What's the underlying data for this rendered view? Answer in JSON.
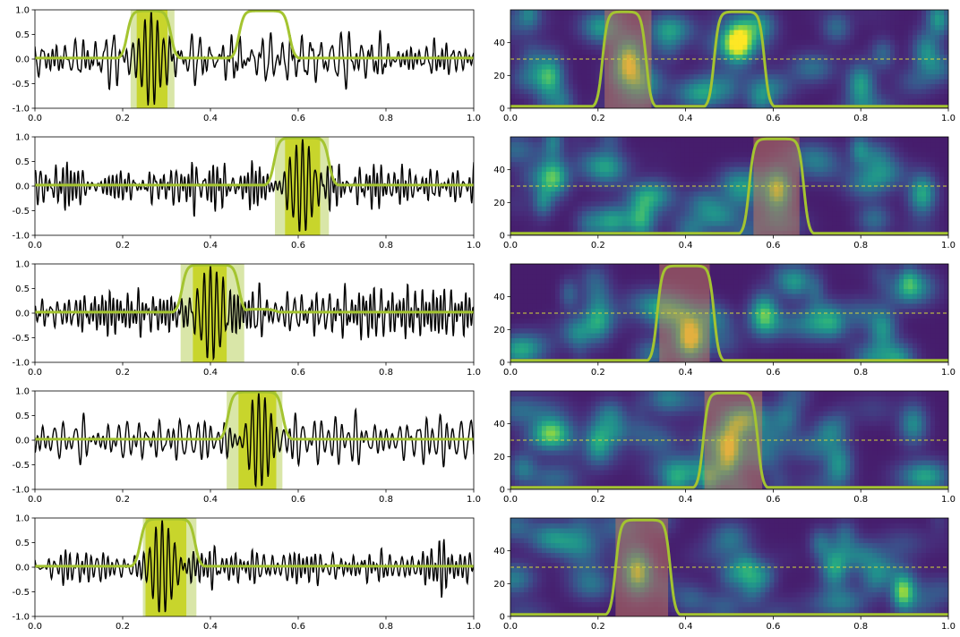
{
  "figure": {
    "colors": {
      "signal": "#000000",
      "probability": "#a4c430",
      "region_light": "#d9e6a8",
      "region_dark": "#c8d52c",
      "threshold": "#d6d83a",
      "overlay": "#c97a5a"
    }
  },
  "chart_data": [
    {
      "type": "line",
      "panel": "signal",
      "row": 0,
      "seed": 11,
      "xlim": [
        0,
        1
      ],
      "ylim": [
        -1,
        1
      ],
      "xticks": [
        "0.0",
        "0.2",
        "0.4",
        "0.6",
        "0.8",
        "1.0"
      ],
      "yticks": [
        "1.0",
        "0.5",
        "0.0",
        "-0.5",
        "-1.0"
      ],
      "series": [
        {
          "values": "signal_trace"
        },
        {
          "values": "probability_trace"
        }
      ],
      "event": {
        "center": 0.265,
        "peak": 0.97
      },
      "outer_region": [
        0.218,
        0.318
      ],
      "inner_region": [
        0.232,
        0.302
      ],
      "prob_segments": [
        [
          0.21,
          0.31
        ],
        [
          0.465,
          0.58
        ]
      ]
    },
    {
      "type": "heatmap",
      "panel": "spectrogram",
      "row": 0,
      "seed": 111,
      "xlim": [
        0,
        1
      ],
      "ylim": [
        0,
        60
      ],
      "xticks": [
        "0.0",
        "0.2",
        "0.4",
        "0.6",
        "0.8",
        "1.0"
      ],
      "yticks": [
        "0",
        "20",
        "40"
      ],
      "threshold": 30,
      "overlay": [
        0.215,
        0.322
      ],
      "prob_segments": [
        [
          0.21,
          0.31
        ],
        [
          0.465,
          0.58
        ]
      ],
      "blobs": [
        [
          0.27,
          30,
          1
        ],
        [
          0.52,
          40,
          0.8
        ],
        [
          0.09,
          20,
          0.7
        ],
        [
          0.8,
          15,
          0.6
        ],
        [
          0.95,
          35,
          0.5
        ]
      ]
    },
    {
      "type": "line",
      "panel": "signal",
      "row": 1,
      "seed": 22,
      "xlim": [
        0,
        1
      ],
      "ylim": [
        -1,
        1
      ],
      "xticks": [
        "0.0",
        "0.2",
        "0.4",
        "0.6",
        "0.8",
        "1.0"
      ],
      "yticks": [
        "1.0",
        "0.5",
        "0.0",
        "-0.5",
        "-1.0"
      ],
      "series": [
        {
          "values": "signal_trace"
        },
        {
          "values": "probability_trace"
        }
      ],
      "event": {
        "center": 0.61,
        "peak": 0.97
      },
      "outer_region": [
        0.547,
        0.67
      ],
      "inner_region": [
        0.57,
        0.65
      ],
      "prob_segments": [
        [
          0.545,
          0.67
        ]
      ]
    },
    {
      "type": "heatmap",
      "panel": "spectrogram",
      "row": 1,
      "seed": 222,
      "xlim": [
        0,
        1
      ],
      "ylim": [
        0,
        60
      ],
      "xticks": [
        "0.0",
        "0.2",
        "0.4",
        "0.6",
        "0.8",
        "1.0"
      ],
      "yticks": [
        "0",
        "20",
        "40"
      ],
      "threshold": 30,
      "overlay": [
        0.555,
        0.66
      ],
      "prob_segments": [
        [
          0.545,
          0.67
        ]
      ],
      "blobs": [
        [
          0.61,
          28,
          1
        ],
        [
          0.3,
          10,
          0.6
        ],
        [
          0.94,
          25,
          0.6
        ],
        [
          0.1,
          35,
          0.5
        ]
      ]
    },
    {
      "type": "line",
      "panel": "signal",
      "row": 2,
      "seed": 33,
      "xlim": [
        0,
        1
      ],
      "ylim": [
        -1,
        1
      ],
      "xticks": [
        "0.0",
        "0.2",
        "0.4",
        "0.6",
        "0.8",
        "1.0"
      ],
      "yticks": [
        "1.0",
        "0.5",
        "0.0",
        "-0.5",
        "-1.0"
      ],
      "series": [
        {
          "values": "signal_trace"
        },
        {
          "values": "probability_trace"
        }
      ],
      "event": {
        "center": 0.4,
        "peak": 0.97
      },
      "outer_region": [
        0.332,
        0.477
      ],
      "inner_region": [
        0.36,
        0.437
      ],
      "prob_segments": [
        [
          0.335,
          0.465
        ]
      ],
      "prob_tail": {
        "start": 0.47,
        "end": 0.55,
        "level": 0.08
      }
    },
    {
      "type": "heatmap",
      "panel": "spectrogram",
      "row": 2,
      "seed": 333,
      "xlim": [
        0,
        1
      ],
      "ylim": [
        0,
        60
      ],
      "xticks": [
        "0.0",
        "0.2",
        "0.4",
        "0.6",
        "0.8",
        "1.0"
      ],
      "yticks": [
        "0",
        "20",
        "40"
      ],
      "threshold": 30,
      "overlay": [
        0.34,
        0.455
      ],
      "prob_segments": [
        [
          0.335,
          0.465
        ]
      ],
      "blobs": [
        [
          0.41,
          15,
          1
        ],
        [
          0.58,
          30,
          0.7
        ],
        [
          0.2,
          25,
          0.5
        ],
        [
          0.85,
          20,
          0.5
        ]
      ]
    },
    {
      "type": "line",
      "panel": "signal",
      "row": 3,
      "seed": 44,
      "xlim": [
        0,
        1
      ],
      "ylim": [
        -1,
        1
      ],
      "xticks": [
        "0.0",
        "0.2",
        "0.4",
        "0.6",
        "0.8",
        "1.0"
      ],
      "yticks": [
        "1.0",
        "0.5",
        "0.0",
        "-0.5",
        "-1.0"
      ],
      "series": [
        {
          "values": "signal_trace"
        },
        {
          "values": "probability_trace"
        }
      ],
      "event": {
        "center": 0.51,
        "peak": 0.97
      },
      "outer_region": [
        0.437,
        0.564
      ],
      "inner_region": [
        0.464,
        0.55
      ],
      "prob_segments": [
        [
          0.44,
          0.565
        ]
      ]
    },
    {
      "type": "heatmap",
      "panel": "spectrogram",
      "row": 3,
      "seed": 444,
      "xlim": [
        0,
        1
      ],
      "ylim": [
        0,
        60
      ],
      "xticks": [
        "0.0",
        "0.2",
        "0.4",
        "0.6",
        "0.8",
        "1.0"
      ],
      "yticks": [
        "0",
        "20",
        "40"
      ],
      "threshold": 30,
      "overlay": [
        0.443,
        0.575
      ],
      "prob_segments": [
        [
          0.44,
          0.565
        ]
      ],
      "blobs": [
        [
          0.5,
          27,
          1
        ],
        [
          0.2,
          30,
          0.6
        ],
        [
          0.75,
          15,
          0.5
        ],
        [
          0.92,
          40,
          0.5
        ]
      ]
    },
    {
      "type": "line",
      "panel": "signal",
      "row": 4,
      "seed": 55,
      "xlim": [
        0,
        1
      ],
      "ylim": [
        -1,
        1
      ],
      "xticks": [
        "0.0",
        "0.2",
        "0.4",
        "0.6",
        "0.8",
        "1.0"
      ],
      "yticks": [
        "1.0",
        "0.5",
        "0.0",
        "-0.5",
        "-1.0"
      ],
      "series": [
        {
          "values": "signal_trace"
        },
        {
          "values": "probability_trace"
        }
      ],
      "event": {
        "center": 0.29,
        "peak": 0.97
      },
      "outer_region": [
        0.246,
        0.368
      ],
      "inner_region": [
        0.252,
        0.345
      ],
      "prob_segments": [
        [
          0.24,
          0.365
        ]
      ],
      "prob_tail": {
        "start": 0.66,
        "end": 0.72,
        "level": 0.03
      }
    },
    {
      "type": "heatmap",
      "panel": "spectrogram",
      "row": 4,
      "seed": 555,
      "xlim": [
        0,
        1
      ],
      "ylim": [
        0,
        60
      ],
      "xticks": [
        "0.0",
        "0.2",
        "0.4",
        "0.6",
        "0.8",
        "1.0"
      ],
      "yticks": [
        "0",
        "20",
        "40"
      ],
      "threshold": 30,
      "overlay": [
        0.24,
        0.36
      ],
      "prob_segments": [
        [
          0.24,
          0.365
        ]
      ],
      "blobs": [
        [
          0.29,
          27,
          1
        ],
        [
          0.74,
          30,
          0.6
        ],
        [
          0.9,
          15,
          0.6
        ],
        [
          0.55,
          20,
          0.4
        ]
      ]
    }
  ]
}
